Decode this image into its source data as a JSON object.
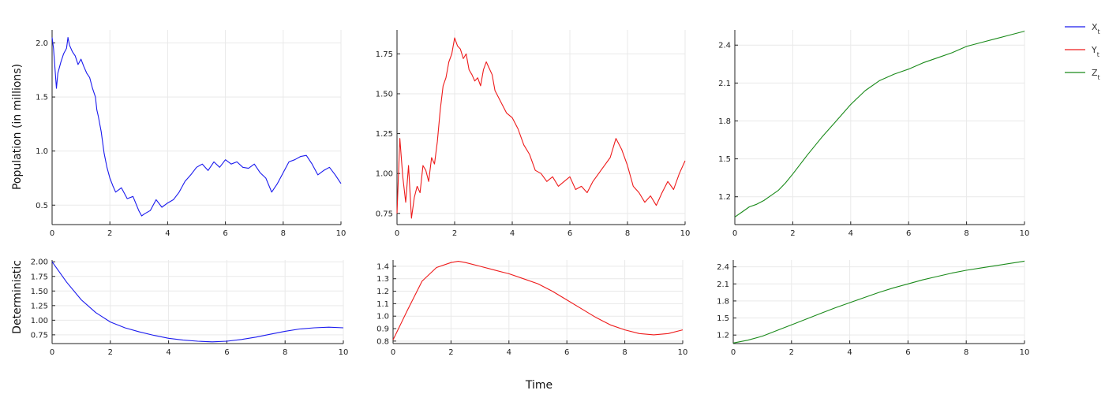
{
  "figure": {
    "xlabel": "Time",
    "ylabel_top": "Population (in millions)",
    "ylabel_bottom": "Deterministic"
  },
  "legend": [
    {
      "label": "X",
      "sub": "t",
      "color": "#1a1aee"
    },
    {
      "label": "Y",
      "sub": "t",
      "color": "#ee1a1a"
    },
    {
      "label": "Z",
      "sub": "t",
      "color": "#1a8a1a"
    }
  ],
  "chart_data": [
    {
      "type": "line",
      "panel": "stochastic-x",
      "color": "#1a1aee",
      "xlim": [
        0,
        10
      ],
      "ylim": [
        0.32,
        2.12
      ],
      "xticks": [
        0,
        2,
        4,
        6,
        8,
        10
      ],
      "yticks": [
        0.5,
        1.0,
        1.5,
        2.0
      ],
      "ytick_labels": [
        "0.5",
        "1.0",
        "1.5",
        "2.0"
      ],
      "x": [
        0,
        0.05,
        0.15,
        0.2,
        0.3,
        0.4,
        0.5,
        0.55,
        0.6,
        0.7,
        0.8,
        0.9,
        1.0,
        1.1,
        1.2,
        1.3,
        1.4,
        1.5,
        1.55,
        1.6,
        1.7,
        1.8,
        1.9,
        2.0,
        2.1,
        2.2,
        2.4,
        2.6,
        2.8,
        3.0,
        3.1,
        3.2,
        3.4,
        3.6,
        3.8,
        4.0,
        4.2,
        4.4,
        4.6,
        4.8,
        5.0,
        5.2,
        5.4,
        5.6,
        5.8,
        6.0,
        6.2,
        6.4,
        6.6,
        6.8,
        7.0,
        7.2,
        7.4,
        7.6,
        7.8,
        8.0,
        8.2,
        8.4,
        8.6,
        8.8,
        9.0,
        9.2,
        9.4,
        9.6,
        9.8,
        10.0
      ],
      "values": [
        2.05,
        1.95,
        1.58,
        1.72,
        1.82,
        1.9,
        1.95,
        2.05,
        1.98,
        1.92,
        1.88,
        1.8,
        1.85,
        1.78,
        1.72,
        1.68,
        1.58,
        1.5,
        1.38,
        1.32,
        1.18,
        0.98,
        0.85,
        0.75,
        0.68,
        0.62,
        0.66,
        0.56,
        0.58,
        0.45,
        0.4,
        0.42,
        0.45,
        0.55,
        0.48,
        0.52,
        0.55,
        0.62,
        0.72,
        0.78,
        0.85,
        0.88,
        0.82,
        0.9,
        0.85,
        0.92,
        0.88,
        0.9,
        0.85,
        0.84,
        0.88,
        0.8,
        0.75,
        0.62,
        0.7,
        0.8,
        0.9,
        0.92,
        0.95,
        0.96,
        0.88,
        0.78,
        0.82,
        0.85,
        0.78,
        0.7
      ]
    },
    {
      "type": "line",
      "panel": "stochastic-y",
      "color": "#ee1a1a",
      "xlim": [
        0,
        10
      ],
      "ylim": [
        0.68,
        1.9
      ],
      "xticks": [
        0,
        2,
        4,
        6,
        8,
        10
      ],
      "yticks": [
        0.75,
        1.0,
        1.25,
        1.5,
        1.75
      ],
      "ytick_labels": [
        "0.75",
        "1.00",
        "1.25",
        "1.50",
        "1.75"
      ],
      "x": [
        0,
        0.1,
        0.2,
        0.3,
        0.4,
        0.5,
        0.6,
        0.7,
        0.8,
        0.9,
        1.0,
        1.1,
        1.2,
        1.3,
        1.4,
        1.5,
        1.6,
        1.7,
        1.8,
        1.9,
        2.0,
        2.1,
        2.2,
        2.3,
        2.4,
        2.5,
        2.6,
        2.7,
        2.8,
        2.9,
        3.0,
        3.1,
        3.2,
        3.3,
        3.4,
        3.6,
        3.8,
        4.0,
        4.2,
        4.4,
        4.6,
        4.8,
        5.0,
        5.2,
        5.4,
        5.6,
        5.8,
        6.0,
        6.2,
        6.4,
        6.6,
        6.8,
        7.0,
        7.2,
        7.4,
        7.6,
        7.8,
        8.0,
        8.2,
        8.4,
        8.6,
        8.8,
        9.0,
        9.2,
        9.4,
        9.6,
        9.8,
        10.0
      ],
      "values": [
        0.75,
        1.22,
        0.98,
        0.82,
        1.05,
        0.72,
        0.85,
        0.92,
        0.88,
        1.05,
        1.02,
        0.95,
        1.1,
        1.06,
        1.2,
        1.4,
        1.55,
        1.6,
        1.7,
        1.75,
        1.85,
        1.8,
        1.78,
        1.72,
        1.75,
        1.65,
        1.62,
        1.58,
        1.6,
        1.55,
        1.65,
        1.7,
        1.66,
        1.62,
        1.52,
        1.45,
        1.38,
        1.35,
        1.28,
        1.18,
        1.12,
        1.02,
        1.0,
        0.95,
        0.98,
        0.92,
        0.95,
        0.98,
        0.9,
        0.92,
        0.88,
        0.95,
        1.0,
        1.05,
        1.1,
        1.22,
        1.15,
        1.05,
        0.92,
        0.88,
        0.82,
        0.86,
        0.8,
        0.88,
        0.95,
        0.9,
        1.0,
        1.08
      ]
    },
    {
      "type": "line",
      "panel": "stochastic-z",
      "color": "#1a8a1a",
      "xlim": [
        0,
        10
      ],
      "ylim": [
        0.98,
        2.52
      ],
      "xticks": [
        0,
        2,
        4,
        6,
        8,
        10
      ],
      "yticks": [
        1.2,
        1.5,
        1.8,
        2.1,
        2.4
      ],
      "ytick_labels": [
        "1.2",
        "1.5",
        "1.8",
        "2.1",
        "2.4"
      ],
      "x": [
        0,
        0.25,
        0.5,
        0.75,
        1.0,
        1.25,
        1.5,
        1.75,
        2.0,
        2.5,
        3.0,
        3.5,
        4.0,
        4.5,
        5.0,
        5.5,
        6.0,
        6.5,
        7.0,
        7.5,
        8.0,
        8.5,
        9.0,
        9.5,
        10.0
      ],
      "values": [
        1.04,
        1.08,
        1.12,
        1.14,
        1.17,
        1.21,
        1.25,
        1.31,
        1.38,
        1.53,
        1.67,
        1.8,
        1.93,
        2.04,
        2.12,
        2.17,
        2.21,
        2.26,
        2.3,
        2.34,
        2.39,
        2.42,
        2.45,
        2.48,
        2.51
      ]
    },
    {
      "type": "line",
      "panel": "deterministic-x",
      "color": "#1a1aee",
      "xlim": [
        0,
        10
      ],
      "ylim": [
        0.6,
        2.03
      ],
      "xticks": [
        0,
        2,
        4,
        6,
        8,
        10
      ],
      "yticks": [
        0.75,
        1.0,
        1.25,
        1.5,
        1.75,
        2.0
      ],
      "ytick_labels": [
        "0.75",
        "1.00",
        "1.25",
        "1.50",
        "1.75",
        "2.00"
      ],
      "x": [
        0,
        0.5,
        1.0,
        1.5,
        2.0,
        2.5,
        3.0,
        3.5,
        4.0,
        4.5,
        5.0,
        5.5,
        6.0,
        6.5,
        7.0,
        7.5,
        8.0,
        8.5,
        9.0,
        9.5,
        10.0
      ],
      "values": [
        2.0,
        1.65,
        1.35,
        1.13,
        0.97,
        0.87,
        0.8,
        0.74,
        0.69,
        0.66,
        0.64,
        0.63,
        0.64,
        0.67,
        0.71,
        0.76,
        0.81,
        0.85,
        0.87,
        0.88,
        0.87
      ]
    },
    {
      "type": "line",
      "panel": "deterministic-y",
      "color": "#ee1a1a",
      "xlim": [
        0,
        10
      ],
      "ylim": [
        0.78,
        1.45
      ],
      "xticks": [
        0,
        2,
        4,
        6,
        8,
        10
      ],
      "yticks": [
        0.8,
        0.9,
        1.0,
        1.1,
        1.2,
        1.3,
        1.4
      ],
      "ytick_labels": [
        "0.8",
        "0.9",
        "1.0",
        "1.1",
        "1.2",
        "1.3",
        "1.4"
      ],
      "x": [
        0,
        0.5,
        1.0,
        1.5,
        2.0,
        2.25,
        2.5,
        3.0,
        3.5,
        4.0,
        4.5,
        5.0,
        5.5,
        6.0,
        6.5,
        7.0,
        7.5,
        8.0,
        8.5,
        9.0,
        9.5,
        10.0
      ],
      "values": [
        0.81,
        1.05,
        1.28,
        1.39,
        1.43,
        1.44,
        1.43,
        1.4,
        1.37,
        1.34,
        1.3,
        1.26,
        1.2,
        1.13,
        1.06,
        0.99,
        0.93,
        0.89,
        0.86,
        0.85,
        0.86,
        0.89
      ]
    },
    {
      "type": "line",
      "panel": "deterministic-z",
      "color": "#1a8a1a",
      "xlim": [
        0,
        10
      ],
      "ylim": [
        1.05,
        2.52
      ],
      "xticks": [
        0,
        2,
        4,
        6,
        8,
        10
      ],
      "yticks": [
        1.2,
        1.5,
        1.8,
        2.1,
        2.4
      ],
      "ytick_labels": [
        "1.2",
        "1.5",
        "1.8",
        "2.1",
        "2.4"
      ],
      "x": [
        0,
        0.5,
        1.0,
        1.5,
        2.0,
        2.5,
        3.0,
        3.5,
        4.0,
        4.5,
        5.0,
        5.5,
        6.0,
        6.5,
        7.0,
        7.5,
        8.0,
        8.5,
        9.0,
        9.5,
        10.0
      ],
      "values": [
        1.06,
        1.11,
        1.18,
        1.28,
        1.38,
        1.48,
        1.58,
        1.68,
        1.77,
        1.86,
        1.95,
        2.03,
        2.1,
        2.17,
        2.23,
        2.29,
        2.34,
        2.38,
        2.42,
        2.46,
        2.5
      ]
    }
  ]
}
